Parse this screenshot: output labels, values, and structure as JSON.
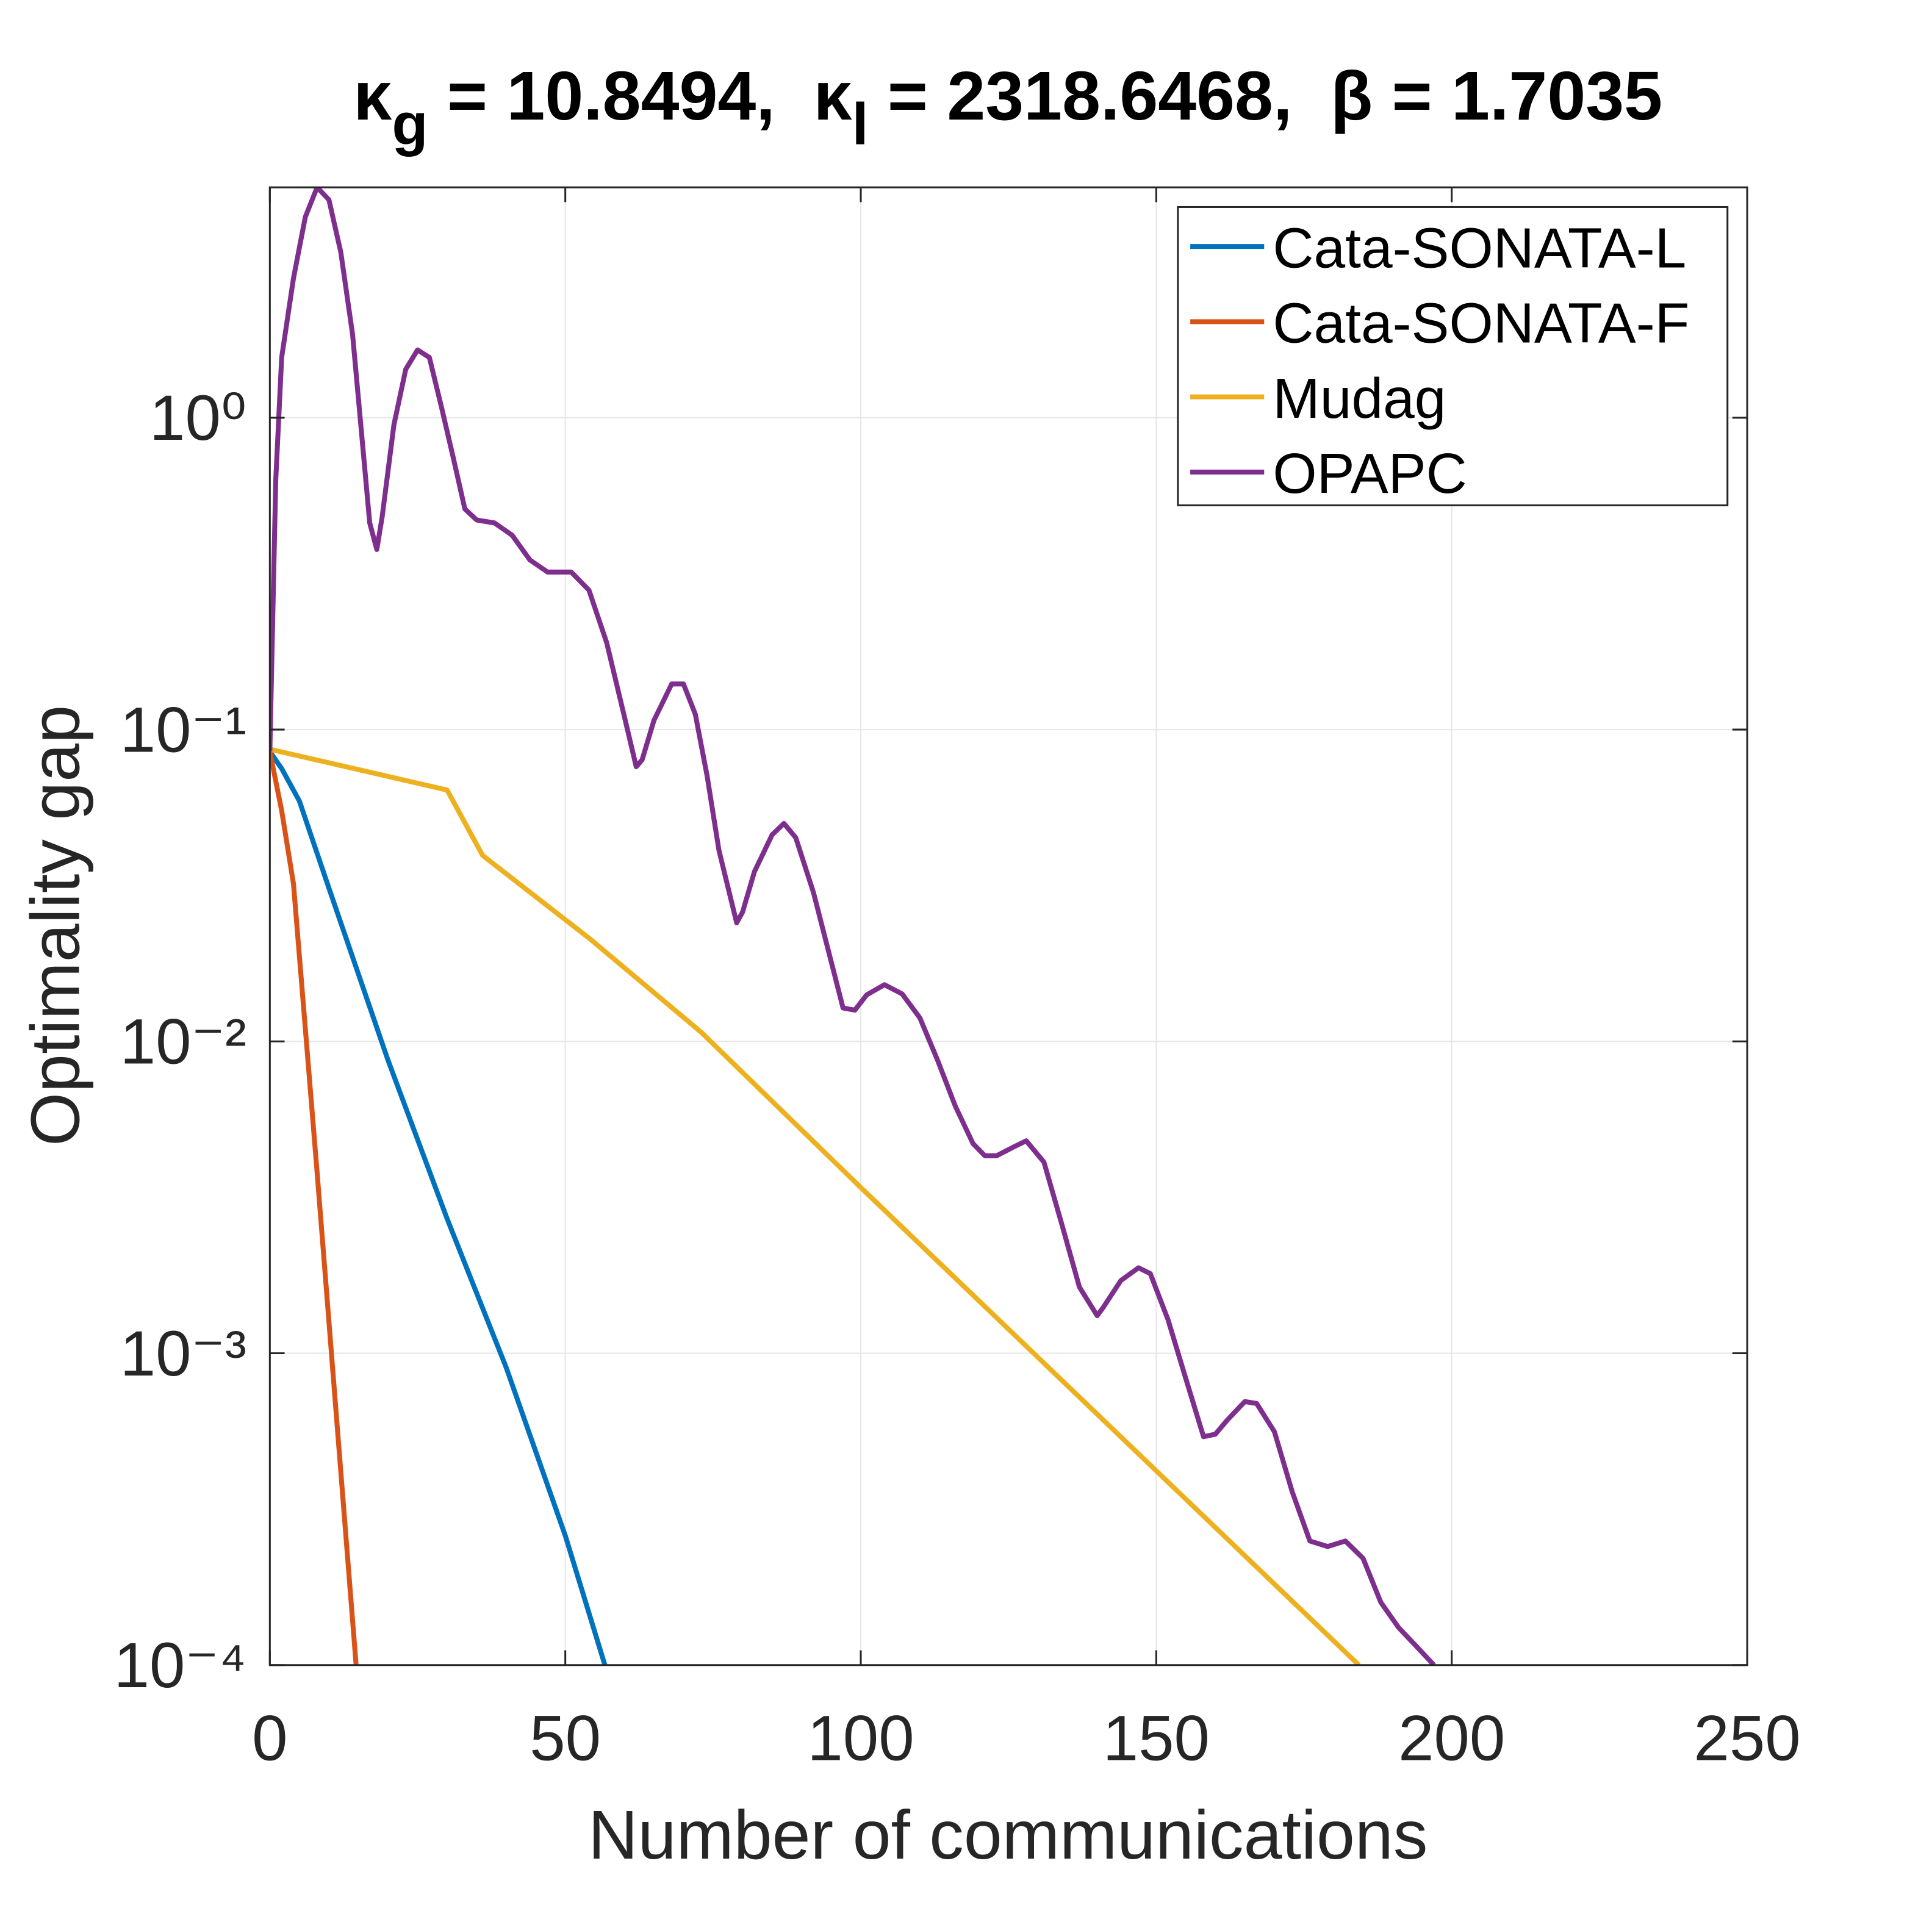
{
  "chart_data": {
    "type": "line",
    "title": [
      {
        "text": "κ"
      },
      {
        "text": "g",
        "sub": true
      },
      {
        "text": " = 10.8494,  "
      },
      {
        "text": "κ"
      },
      {
        "text": "l",
        "sub": true
      },
      {
        "text": " = 2318.6468,  β = 1.7035"
      }
    ],
    "xlabel": "Number of communications",
    "ylabel": "Optimality gap",
    "xlim": [
      0,
      250
    ],
    "xticks": [
      0,
      50,
      100,
      150,
      200,
      250
    ],
    "ylim": [
      0.0001,
      5.48
    ],
    "yscale": "log",
    "yticks": [
      {
        "value": 0.0001,
        "label": "10⁻⁴"
      },
      {
        "value": 0.001,
        "label": "10⁻³"
      },
      {
        "value": 0.01,
        "label": "10⁻²"
      },
      {
        "value": 0.1,
        "label": "10⁻¹"
      },
      {
        "value": 1,
        "label": "10⁰"
      }
    ],
    "grid": true,
    "legend": "top-right",
    "series": [
      {
        "name": "Cata-SONATA-L",
        "color": "#0072BD",
        "x": [
          0,
          2,
          5,
          10,
          20,
          30,
          40,
          50,
          56.7
        ],
        "values": [
          0.085,
          0.075,
          0.059,
          0.031,
          0.0087,
          0.0027,
          0.0009,
          0.00026,
          0.0001
        ]
      },
      {
        "name": "Cata-SONATA-F",
        "color": "#D95319",
        "x": [
          0,
          2,
          4,
          8,
          14.6
        ],
        "values": [
          0.085,
          0.055,
          0.032,
          0.0038,
          0.0001
        ]
      },
      {
        "name": "Mudag",
        "color": "#EDB120",
        "x": [
          0,
          30,
          36,
          54.2,
          73,
          100,
          184.3
        ],
        "values": [
          0.0865,
          0.064,
          0.0395,
          0.0213,
          0.0107,
          0.0034,
          0.0001
        ]
      },
      {
        "name": "OPAPC",
        "color": "#7E2F8E",
        "x": [
          0,
          1,
          2,
          4,
          6,
          8,
          10,
          12,
          14,
          16.9,
          18.1,
          19,
          21,
          23,
          25,
          27,
          29,
          31,
          33,
          35,
          38,
          41,
          44,
          47,
          51,
          54,
          57,
          60,
          62,
          63,
          65,
          68,
          70,
          72,
          74,
          76,
          79,
          80,
          82,
          85,
          87,
          89,
          92,
          95,
          97,
          99,
          101,
          104,
          107,
          110,
          113,
          116,
          119,
          121,
          123,
          126,
          128,
          131,
          134,
          137,
          140,
          141,
          144,
          147,
          149,
          152,
          155,
          158,
          160,
          162,
          165,
          167,
          170,
          173,
          176,
          179,
          182,
          185,
          188,
          191,
          194,
          197
        ],
        "values": [
          0.085,
          0.63,
          1.56,
          2.8,
          4.4,
          5.48,
          5.0,
          3.4,
          1.85,
          0.46,
          0.378,
          0.48,
          0.95,
          1.43,
          1.65,
          1.56,
          1.09,
          0.75,
          0.51,
          0.47,
          0.46,
          0.42,
          0.35,
          0.32,
          0.32,
          0.28,
          0.19,
          0.11,
          0.076,
          0.08,
          0.107,
          0.14,
          0.14,
          0.112,
          0.071,
          0.041,
          0.024,
          0.026,
          0.035,
          0.046,
          0.05,
          0.045,
          0.03,
          0.018,
          0.0128,
          0.0126,
          0.0141,
          0.0152,
          0.0142,
          0.0119,
          0.0087,
          0.0062,
          0.0047,
          0.0043,
          0.0043,
          0.0046,
          0.0048,
          0.0041,
          0.0026,
          0.00163,
          0.00132,
          0.0014,
          0.00171,
          0.00188,
          0.0018,
          0.00128,
          0.00083,
          0.00054,
          0.00055,
          0.00061,
          0.0007,
          0.00069,
          0.00056,
          0.00036,
          0.00025,
          0.00024,
          0.00025,
          0.00022,
          0.000159,
          0.000132,
          0.000115,
          0.0001
        ]
      }
    ]
  }
}
